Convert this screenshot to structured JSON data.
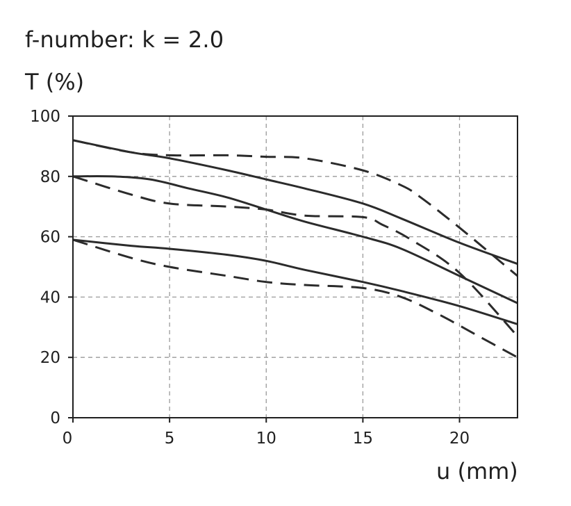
{
  "chart_data": {
    "type": "line",
    "title": "f-number: k = 2.0",
    "xlabel": "u (mm)",
    "ylabel": "T (%)",
    "xlim": [
      0,
      23
    ],
    "ylim": [
      0,
      100
    ],
    "xticks": [
      0,
      5,
      10,
      15,
      20
    ],
    "yticks": [
      0,
      20,
      40,
      60,
      80,
      100
    ],
    "grid": true,
    "series": [
      {
        "style": "solid",
        "x": [
          0,
          3,
          5,
          8,
          10,
          12,
          15,
          17,
          20,
          23
        ],
        "y": [
          92,
          88,
          86,
          82,
          79,
          76,
          71,
          66,
          58,
          51
        ]
      },
      {
        "style": "dashed",
        "x": [
          0,
          3,
          5,
          8,
          10,
          12,
          15,
          17,
          18,
          20,
          23
        ],
        "y": [
          92,
          88,
          87,
          87,
          86.5,
          86,
          82,
          77,
          73,
          63,
          47
        ]
      },
      {
        "style": "solid",
        "x": [
          0,
          2,
          4,
          6,
          8,
          10,
          12,
          15,
          17,
          20,
          23
        ],
        "y": [
          80,
          80,
          79,
          76,
          73,
          69,
          65,
          60,
          56,
          47,
          38
        ]
      },
      {
        "style": "dashed",
        "x": [
          0,
          3,
          5,
          8,
          10,
          12,
          15,
          16,
          17.5,
          20,
          23
        ],
        "y": [
          80,
          74,
          71,
          70,
          69,
          67,
          66.5,
          64,
          59,
          48,
          27
        ]
      },
      {
        "style": "solid",
        "x": [
          0,
          3,
          5,
          8,
          10,
          12,
          15,
          17,
          20,
          23
        ],
        "y": [
          59,
          57,
          56,
          54,
          52,
          49,
          45,
          42,
          37,
          31
        ]
      },
      {
        "style": "dashed",
        "x": [
          0,
          3,
          5,
          8,
          10,
          12,
          15,
          17,
          19,
          21,
          23
        ],
        "y": [
          59,
          53,
          50,
          47,
          45,
          44,
          43,
          40,
          34,
          27,
          20
        ]
      }
    ]
  }
}
